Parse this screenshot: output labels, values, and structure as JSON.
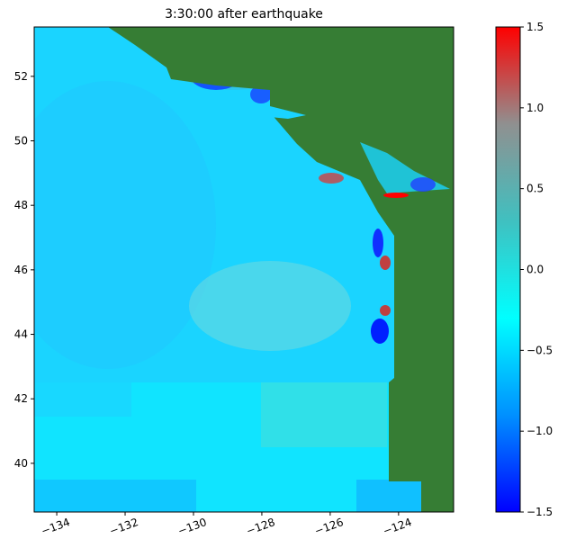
{
  "chart_data": {
    "type": "heatmap",
    "title": "3:30:00 after earthquake",
    "xlim": [
      -134.66,
      -122.39
    ],
    "ylim": [
      38.49,
      53.53
    ],
    "xticks": [
      {
        "value": -134,
        "label": "−134"
      },
      {
        "value": -132,
        "label": "−132"
      },
      {
        "value": -130,
        "label": "−130"
      },
      {
        "value": -128,
        "label": "−128"
      },
      {
        "value": -126,
        "label": "−126"
      },
      {
        "value": -124,
        "label": "−124"
      }
    ],
    "yticks": [
      40,
      42,
      44,
      46,
      48,
      50,
      52
    ],
    "clim": [
      -1.5,
      1.5
    ],
    "cticks": [
      {
        "value": -1.5,
        "label": "−1.5"
      },
      {
        "value": -1.0,
        "label": "−1.0"
      },
      {
        "value": -0.5,
        "label": "−0.5"
      },
      {
        "value": 0,
        "label": "0.0"
      },
      0.5,
      {
        "value": 1,
        "label": "1.0"
      },
      1.5
    ],
    "colormap": [
      "#0000ff",
      "#0090ff",
      "#00ffff",
      "#40c0c0",
      "#909090",
      "#ff0000"
    ]
  }
}
